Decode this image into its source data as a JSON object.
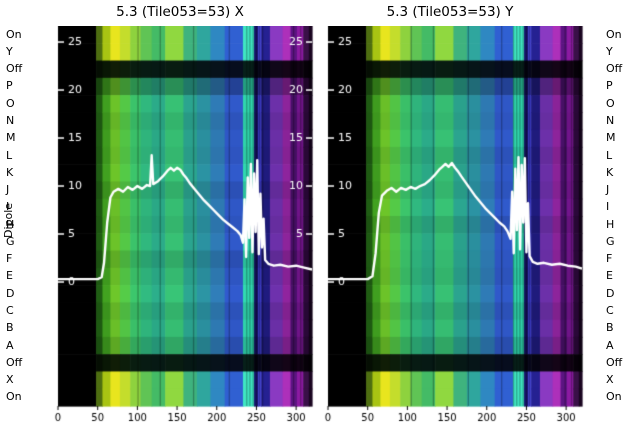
{
  "figure": {
    "dipole_axis_label": "Dipole",
    "dipole_labels": [
      "On",
      "Y",
      "Off",
      "P",
      "O",
      "N",
      "M",
      "L",
      "K",
      "J",
      "I",
      "H",
      "G",
      "F",
      "E",
      "D",
      "C",
      "B",
      "A",
      "Off",
      "X",
      "On"
    ],
    "background": "#ffffff",
    "line_color": "#ffffff"
  },
  "chart_data": [
    {
      "type": "heatmap+line",
      "title": "5.3 (Tile053=53) X",
      "xlim": [
        0,
        320
      ],
      "x_ticks": [
        0,
        50,
        100,
        150,
        200,
        250,
        300
      ],
      "rows": 22,
      "vivid_rows": [
        0,
        1,
        20,
        21
      ],
      "dark_rows": [
        2,
        19
      ],
      "dark_factor": 0.15,
      "row_factors": [
        1,
        1,
        0.15,
        0.75,
        1.02,
        0.95,
        1.0,
        0.97,
        1.03,
        0.92,
        1.0,
        0.96,
        1.02,
        0.9,
        0.98,
        1.04,
        0.94,
        1.0,
        0.88,
        0.15,
        1,
        1
      ],
      "value_ticks": [
        25,
        20,
        15,
        10,
        5,
        0
      ],
      "right_value_ticks": [
        25,
        20,
        15,
        10,
        5
      ],
      "show_right_value_ticks": true,
      "value_axis": {
        "zero_frac": 0.6737,
        "unit_frac": 0.02526
      },
      "line_color": "#ffffff",
      "bands": [
        {
          "x0": 0,
          "x1": 48,
          "c": "#000000",
          "v": "#000000"
        },
        {
          "x0": 48,
          "x1": 56,
          "c": "#1e5a12",
          "v": "#4e6e10"
        },
        {
          "x0": 56,
          "x1": 66,
          "c": "#3f9c1f",
          "v": "#a8c413"
        },
        {
          "x0": 66,
          "x1": 78,
          "c": "#6abf28",
          "v": "#e8e51e"
        },
        {
          "x0": 78,
          "x1": 91,
          "c": "#52c445",
          "v": "#c4dd2c"
        },
        {
          "x0": 91,
          "x1": 104,
          "c": "#3abf68",
          "v": "#8ed23e"
        },
        {
          "x0": 104,
          "x1": 118,
          "c": "#2fb47c",
          "v": "#60c455"
        },
        {
          "x0": 118,
          "x1": 135,
          "c": "#2aa886",
          "v": "#44bb66"
        },
        {
          "x0": 135,
          "x1": 158,
          "c": "#36bd72",
          "v": "#90d840"
        },
        {
          "x0": 158,
          "x1": 175,
          "c": "#2aa18c",
          "v": "#3fb37e"
        },
        {
          "x0": 175,
          "x1": 192,
          "c": "#2a8f9e",
          "v": "#2fa69e"
        },
        {
          "x0": 192,
          "x1": 210,
          "c": "#2e79b2",
          "v": "#2f88c2"
        },
        {
          "x0": 210,
          "x1": 233,
          "c": "#2f57c6",
          "v": "#3060d2"
        },
        {
          "x0": 233,
          "x1": 247,
          "c": "#2fd2aa",
          "v": "#3fe6c2"
        },
        {
          "x0": 247,
          "x1": 252,
          "c": "#14125e",
          "v": "#191670"
        },
        {
          "x0": 252,
          "x1": 256,
          "c": "#3a3ac2",
          "v": "#4646d4"
        },
        {
          "x0": 256,
          "x1": 267,
          "c": "#1e1a7a",
          "v": "#252192"
        },
        {
          "x0": 267,
          "x1": 283,
          "c": "#6a2fa6",
          "v": "#8a3ac2"
        },
        {
          "x0": 283,
          "x1": 293,
          "c": "#8a2398",
          "v": "#ad30ba"
        },
        {
          "x0": 293,
          "x1": 301,
          "c": "#471066",
          "v": "#5c1482"
        },
        {
          "x0": 301,
          "x1": 309,
          "c": "#6f1488",
          "v": "#8c1aa2"
        },
        {
          "x0": 309,
          "x1": 316,
          "c": "#2a0838",
          "v": "#3a1048"
        },
        {
          "x0": 316,
          "x1": 320,
          "c": "#120318",
          "v": "#1a0520"
        }
      ],
      "stripes": [
        100,
        128,
        170,
        215,
        237,
        241,
        245,
        249,
        253,
        257,
        296,
        305
      ],
      "line": [
        [
          0,
          0.3
        ],
        [
          50,
          0.3
        ],
        [
          55,
          0.5
        ],
        [
          58,
          2.0
        ],
        [
          62,
          6.2
        ],
        [
          66,
          8.8
        ],
        [
          70,
          9.4
        ],
        [
          76,
          9.7
        ],
        [
          82,
          9.4
        ],
        [
          88,
          9.9
        ],
        [
          94,
          9.6
        ],
        [
          100,
          10.0
        ],
        [
          106,
          9.7
        ],
        [
          112,
          10.1
        ],
        [
          116,
          10.0
        ],
        [
          118,
          13.2
        ],
        [
          120,
          10.2
        ],
        [
          126,
          10.5
        ],
        [
          132,
          11.0
        ],
        [
          138,
          11.6
        ],
        [
          142,
          11.9
        ],
        [
          146,
          11.6
        ],
        [
          150,
          11.9
        ],
        [
          154,
          11.7
        ],
        [
          158,
          11.2
        ],
        [
          162,
          10.8
        ],
        [
          166,
          10.3
        ],
        [
          172,
          9.7
        ],
        [
          178,
          9.1
        ],
        [
          184,
          8.5
        ],
        [
          190,
          8.0
        ],
        [
          196,
          7.5
        ],
        [
          202,
          7.0
        ],
        [
          208,
          6.5
        ],
        [
          214,
          6.1
        ],
        [
          220,
          5.7
        ],
        [
          226,
          5.3
        ],
        [
          230,
          4.9
        ],
        [
          233,
          4.1
        ],
        [
          235,
          8.6
        ],
        [
          237,
          2.6
        ],
        [
          239,
          10.9
        ],
        [
          241,
          4.6
        ],
        [
          243,
          12.3
        ],
        [
          245,
          3.1
        ],
        [
          247,
          11.3
        ],
        [
          249,
          5.2
        ],
        [
          251,
          12.7
        ],
        [
          253,
          2.9
        ],
        [
          255,
          9.2
        ],
        [
          257,
          3.6
        ],
        [
          259,
          6.6
        ],
        [
          261,
          2.3
        ],
        [
          265,
          1.9
        ],
        [
          272,
          1.7
        ],
        [
          280,
          1.8
        ],
        [
          290,
          1.6
        ],
        [
          300,
          1.7
        ],
        [
          310,
          1.5
        ],
        [
          320,
          1.3
        ]
      ]
    },
    {
      "type": "heatmap+line",
      "title": "5.3 (Tile053=53) Y",
      "xlim": [
        0,
        320
      ],
      "x_ticks": [
        0,
        50,
        100,
        150,
        200,
        250,
        300
      ],
      "rows": 22,
      "vivid_rows": [
        0,
        1,
        20,
        21
      ],
      "dark_rows": [
        2,
        19
      ],
      "dark_factor": 0.15,
      "row_factors": [
        1,
        1,
        0.15,
        0.75,
        1.0,
        0.97,
        1.02,
        0.94,
        1.0,
        0.96,
        1.03,
        0.92,
        1.0,
        0.98,
        0.95,
        1.02,
        0.93,
        1.0,
        0.88,
        0.15,
        1,
        1
      ],
      "value_ticks": [
        25,
        20,
        15,
        10,
        5,
        0
      ],
      "right_value_ticks": [],
      "show_right_value_ticks": false,
      "value_axis": {
        "zero_frac": 0.6737,
        "unit_frac": 0.02526
      },
      "line_color": "#ffffff",
      "bands": [
        {
          "x0": 0,
          "x1": 48,
          "c": "#000000",
          "v": "#000000"
        },
        {
          "x0": 48,
          "x1": 56,
          "c": "#1e5a12",
          "v": "#4e6e10"
        },
        {
          "x0": 56,
          "x1": 66,
          "c": "#3f9c1f",
          "v": "#a8c413"
        },
        {
          "x0": 66,
          "x1": 78,
          "c": "#6abf28",
          "v": "#e8e51e"
        },
        {
          "x0": 78,
          "x1": 91,
          "c": "#52c445",
          "v": "#c4dd2c"
        },
        {
          "x0": 91,
          "x1": 104,
          "c": "#3abf68",
          "v": "#8ed23e"
        },
        {
          "x0": 104,
          "x1": 118,
          "c": "#2fb47c",
          "v": "#60c455"
        },
        {
          "x0": 118,
          "x1": 135,
          "c": "#2aa886",
          "v": "#44bb66"
        },
        {
          "x0": 135,
          "x1": 158,
          "c": "#36bd72",
          "v": "#90d840"
        },
        {
          "x0": 158,
          "x1": 175,
          "c": "#2aa18c",
          "v": "#3fb37e"
        },
        {
          "x0": 175,
          "x1": 192,
          "c": "#2a8f9e",
          "v": "#2fa69e"
        },
        {
          "x0": 192,
          "x1": 210,
          "c": "#2e79b2",
          "v": "#2f88c2"
        },
        {
          "x0": 210,
          "x1": 233,
          "c": "#2f57c6",
          "v": "#3060d2"
        },
        {
          "x0": 233,
          "x1": 247,
          "c": "#2fd2aa",
          "v": "#3fe6c2"
        },
        {
          "x0": 247,
          "x1": 252,
          "c": "#14125e",
          "v": "#191670"
        },
        {
          "x0": 252,
          "x1": 256,
          "c": "#3a3ac2",
          "v": "#4646d4"
        },
        {
          "x0": 256,
          "x1": 267,
          "c": "#1e1a7a",
          "v": "#252192"
        },
        {
          "x0": 267,
          "x1": 283,
          "c": "#6a2fa6",
          "v": "#8a3ac2"
        },
        {
          "x0": 283,
          "x1": 293,
          "c": "#8a2398",
          "v": "#ad30ba"
        },
        {
          "x0": 293,
          "x1": 301,
          "c": "#471066",
          "v": "#5c1482"
        },
        {
          "x0": 301,
          "x1": 309,
          "c": "#6f1488",
          "v": "#8c1aa2"
        },
        {
          "x0": 309,
          "x1": 316,
          "c": "#2a0838",
          "v": "#3a1048"
        },
        {
          "x0": 316,
          "x1": 320,
          "c": "#120318",
          "v": "#1a0520"
        }
      ],
      "stripes": [
        104,
        132,
        176,
        218,
        233,
        237,
        241,
        245,
        249,
        253,
        298,
        306
      ],
      "line": [
        [
          0,
          0.3
        ],
        [
          50,
          0.3
        ],
        [
          56,
          0.6
        ],
        [
          60,
          3.0
        ],
        [
          64,
          7.2
        ],
        [
          68,
          9.0
        ],
        [
          74,
          9.5
        ],
        [
          80,
          9.8
        ],
        [
          86,
          9.4
        ],
        [
          92,
          9.8
        ],
        [
          98,
          9.6
        ],
        [
          104,
          9.9
        ],
        [
          110,
          9.7
        ],
        [
          116,
          10.0
        ],
        [
          122,
          10.2
        ],
        [
          128,
          10.6
        ],
        [
          134,
          11.1
        ],
        [
          140,
          11.7
        ],
        [
          144,
          12.0
        ],
        [
          148,
          12.3
        ],
        [
          152,
          12.0
        ],
        [
          156,
          12.4
        ],
        [
          160,
          11.9
        ],
        [
          164,
          11.5
        ],
        [
          168,
          11.0
        ],
        [
          174,
          10.3
        ],
        [
          180,
          9.6
        ],
        [
          186,
          8.9
        ],
        [
          192,
          8.3
        ],
        [
          198,
          7.7
        ],
        [
          204,
          7.2
        ],
        [
          210,
          6.7
        ],
        [
          216,
          6.2
        ],
        [
          222,
          5.8
        ],
        [
          226,
          5.3
        ],
        [
          230,
          4.5
        ],
        [
          232,
          9.4
        ],
        [
          234,
          3.0
        ],
        [
          236,
          11.8
        ],
        [
          238,
          5.4
        ],
        [
          240,
          13.0
        ],
        [
          242,
          3.4
        ],
        [
          244,
          12.2
        ],
        [
          246,
          6.2
        ],
        [
          248,
          12.9
        ],
        [
          250,
          3.1
        ],
        [
          252,
          8.2
        ],
        [
          254,
          2.7
        ],
        [
          258,
          2.1
        ],
        [
          264,
          1.9
        ],
        [
          272,
          2.0
        ],
        [
          282,
          1.8
        ],
        [
          292,
          1.9
        ],
        [
          302,
          1.7
        ],
        [
          312,
          1.6
        ],
        [
          320,
          1.4
        ]
      ]
    }
  ]
}
